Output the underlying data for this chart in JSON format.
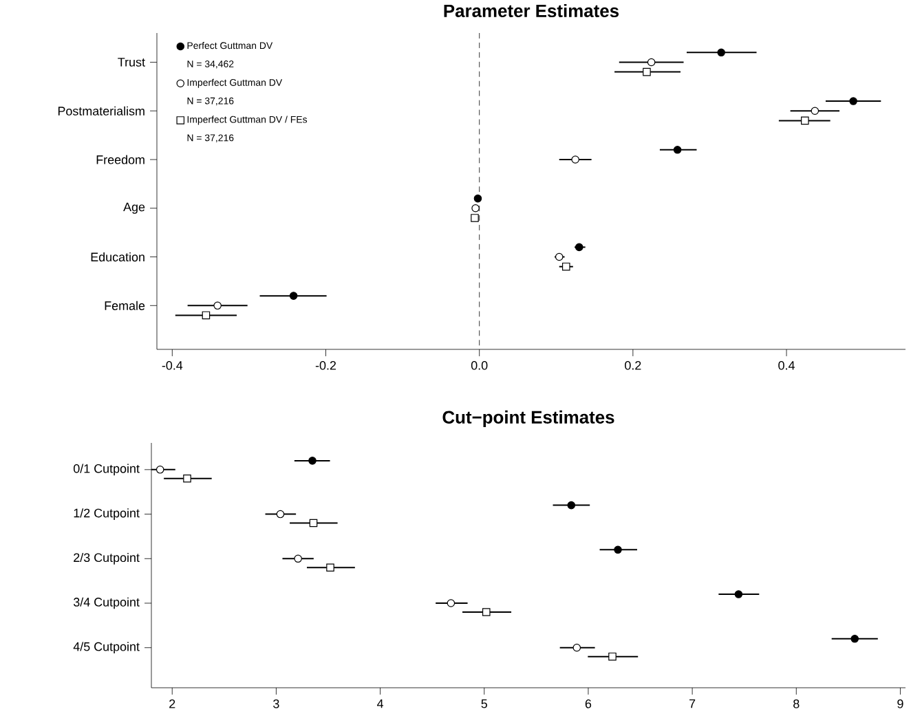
{
  "chart_data": [
    {
      "type": "scatter",
      "title": "Parameter Estimates",
      "orientation": "horizontal",
      "categories": [
        "Trust",
        "Postmaterialism",
        "Freedom",
        "Age",
        "Education",
        "Female"
      ],
      "xlim": [
        -0.42,
        0.555
      ],
      "xticks": [
        -0.4,
        -0.2,
        {
          "value": 0,
          "label": "0.0"
        },
        0.2,
        0.4
      ],
      "legend": "top left",
      "annotations": [
        "N = 34,462",
        "N = 37,216",
        "N = 37,216"
      ],
      "ref_lines": [
        {
          "axis": "x",
          "value": 0,
          "line_style": "dashed"
        }
      ],
      "series": [
        {
          "name": "Perfect Guttman DV",
          "color": "#000000",
          "marker": "circle",
          "values": [
            0.315,
            0.487,
            0.258,
            -0.002,
            0.13,
            -0.242
          ],
          "errors": [
            [
              0.27,
              0.361
            ],
            [
              0.451,
              0.523
            ],
            [
              0.235,
              0.283
            ],
            null,
            [
              0.124,
              0.138
            ],
            [
              -0.286,
              -0.199
            ]
          ]
        },
        {
          "name": "Imperfect Guttman DV",
          "color": "#ffffff",
          "marker": "circle",
          "values": [
            0.224,
            0.437,
            0.125,
            -0.005,
            0.104,
            -0.341
          ],
          "errors": [
            [
              0.182,
              0.266
            ],
            [
              0.405,
              0.469
            ],
            [
              0.104,
              0.146
            ],
            null,
            [
              0.098,
              0.111
            ],
            [
              -0.38,
              -0.302
            ]
          ]
        },
        {
          "name": "Imperfect Guttman DV / FEs",
          "color": "#ffffff",
          "marker": "square",
          "values": [
            0.218,
            0.424,
            null,
            -0.006,
            0.113,
            -0.356
          ],
          "errors": [
            [
              0.176,
              0.262
            ],
            [
              0.39,
              0.457
            ],
            null,
            null,
            [
              0.104,
              0.122
            ],
            [
              -0.396,
              -0.316
            ]
          ]
        }
      ]
    },
    {
      "type": "scatter",
      "title": "Cut−point Estimates",
      "orientation": "horizontal",
      "categories": [
        "0/1 Cutpoint",
        "1/2 Cutpoint",
        "2/3 Cutpoint",
        "3/4 Cutpoint",
        "4/5 Cutpoint"
      ],
      "xlim": [
        1.8,
        9.05
      ],
      "xticks": [
        2,
        3,
        4,
        5,
        6,
        7,
        8,
        9
      ],
      "series": [
        {
          "color": "#000000",
          "marker": "circle",
          "values": [
            3.348,
            5.837,
            6.285,
            7.445,
            8.562
          ],
          "errors": [
            [
              3.175,
              3.517
            ],
            [
              5.66,
              6.015
            ],
            [
              6.11,
              6.47
            ],
            [
              7.253,
              7.643
            ],
            [
              8.34,
              8.784
            ]
          ]
        },
        {
          "color": "#ffffff",
          "marker": "circle",
          "values": [
            1.884,
            3.04,
            3.21,
            4.68,
            5.89
          ],
          "errors": [
            [
              1.8,
              2.03
            ],
            [
              2.895,
              3.19
            ],
            [
              3.06,
              3.36
            ],
            [
              4.533,
              4.84
            ],
            [
              5.727,
              6.064
            ]
          ]
        },
        {
          "color": "#ffffff",
          "marker": "square",
          "values": [
            2.144,
            3.358,
            3.52,
            5.02,
            6.232
          ],
          "errors": [
            [
              1.92,
              2.38
            ],
            [
              3.13,
              3.59
            ],
            [
              3.295,
              3.757
            ],
            [
              4.79,
              5.26
            ],
            [
              5.996,
              6.478
            ]
          ]
        }
      ]
    }
  ]
}
